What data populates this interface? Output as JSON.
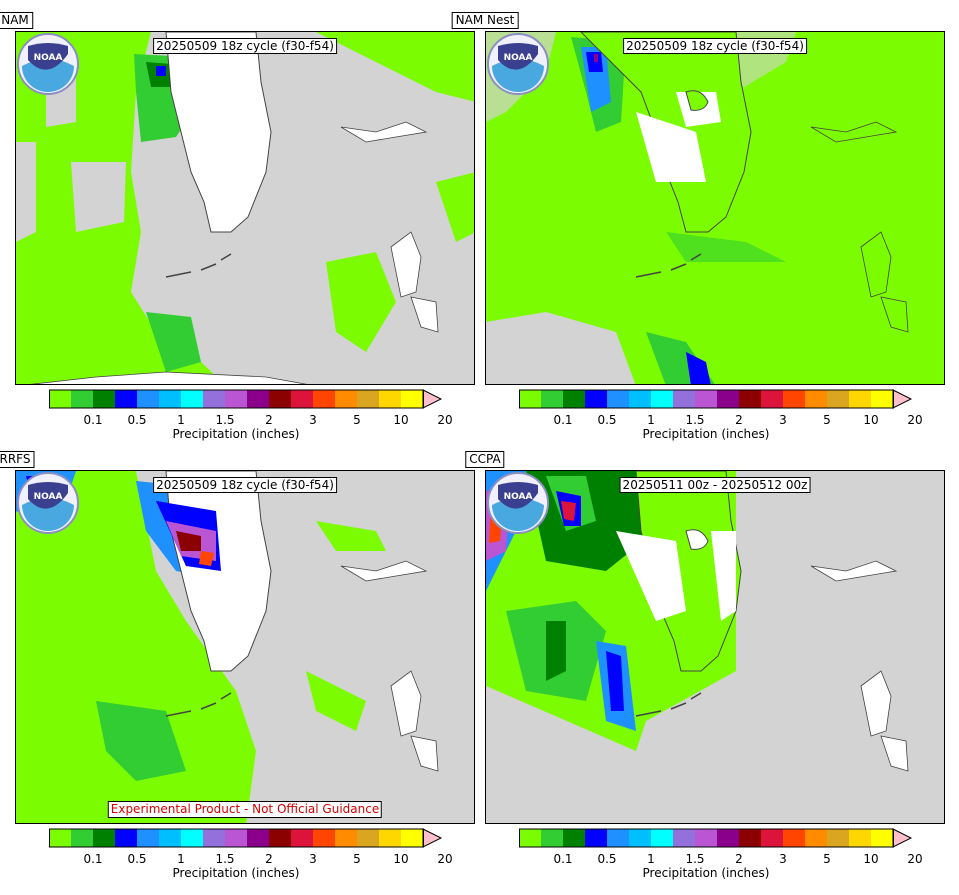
{
  "panels": [
    {
      "title": "NAM",
      "subtitle": "20250509 18z cycle (f30-f54)",
      "disclaimer": ""
    },
    {
      "title": "NAM Nest",
      "subtitle": "20250509 18z cycle (f30-f54)",
      "disclaimer": ""
    },
    {
      "title": "RRFS",
      "subtitle": "20250509 18z cycle (f30-f54)",
      "disclaimer": "Experimental Product - Not Official Guidance"
    },
    {
      "title": "CCPA",
      "subtitle": "20250511 00z - 20250512 00z",
      "disclaimer": ""
    }
  ],
  "colorbar": {
    "label": "Precipitation (inches)",
    "ticks": [
      "0.1",
      "0.5",
      "1",
      "1.5",
      "2",
      "3",
      "5",
      "10",
      "20"
    ],
    "colors": [
      "#7cfc00",
      "#32cd32",
      "#008000",
      "#0000ff",
      "#1e90ff",
      "#00bfff",
      "#00ffff",
      "#9370db",
      "#ba55d3",
      "#8b008b",
      "#8b0000",
      "#dc143c",
      "#ff4500",
      "#ff8c00",
      "#daa520",
      "#ffd700",
      "#ffff00"
    ],
    "extend_color": "#ffc0cb"
  },
  "map_colors": {
    "land": "#ffffff",
    "background": "#d3d3d3",
    "light_precip": "#7cfc00",
    "moderate_precip": "#32cd32",
    "heavy_precip": "#008000"
  },
  "logo": {
    "text": "NOAA",
    "icon": "noaa-logo-icon"
  }
}
